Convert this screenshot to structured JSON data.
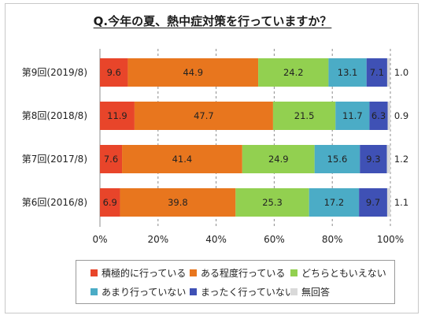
{
  "title": "Q.今年の夏、熱中症対策を行っていますか？",
  "chart_data": {
    "type": "bar",
    "orientation": "horizontal",
    "stacked": true,
    "percent": true,
    "categories": [
      "第9回(2019/8)",
      "第8回(2018/8)",
      "第7回(2017/8)",
      "第6回(2016/8)"
    ],
    "series": [
      {
        "name": "積極的に行っている",
        "color": "#e8452a",
        "values": [
          9.6,
          11.9,
          7.6,
          6.9
        ]
      },
      {
        "name": "ある程度行っている",
        "color": "#e8761e",
        "values": [
          44.9,
          47.7,
          41.4,
          39.8
        ]
      },
      {
        "name": "どちらともいえない",
        "color": "#92d050",
        "values": [
          24.2,
          21.5,
          24.9,
          25.3
        ]
      },
      {
        "name": "あまり行っていない",
        "color": "#4bacc6",
        "values": [
          13.1,
          11.7,
          15.6,
          17.2
        ]
      },
      {
        "name": "まったく行っていない",
        "color": "#3f51b5",
        "values": [
          7.1,
          6.3,
          9.3,
          9.7
        ]
      },
      {
        "name": "無回答",
        "color": "#d9d9d9",
        "values": [
          1.0,
          0.9,
          1.2,
          1.1
        ]
      }
    ],
    "xlim": [
      0,
      100
    ],
    "xticks": [
      "0%",
      "20%",
      "40%",
      "60%",
      "80%",
      "100%"
    ],
    "grid": "vertical-dashed",
    "legend_position": "bottom"
  }
}
